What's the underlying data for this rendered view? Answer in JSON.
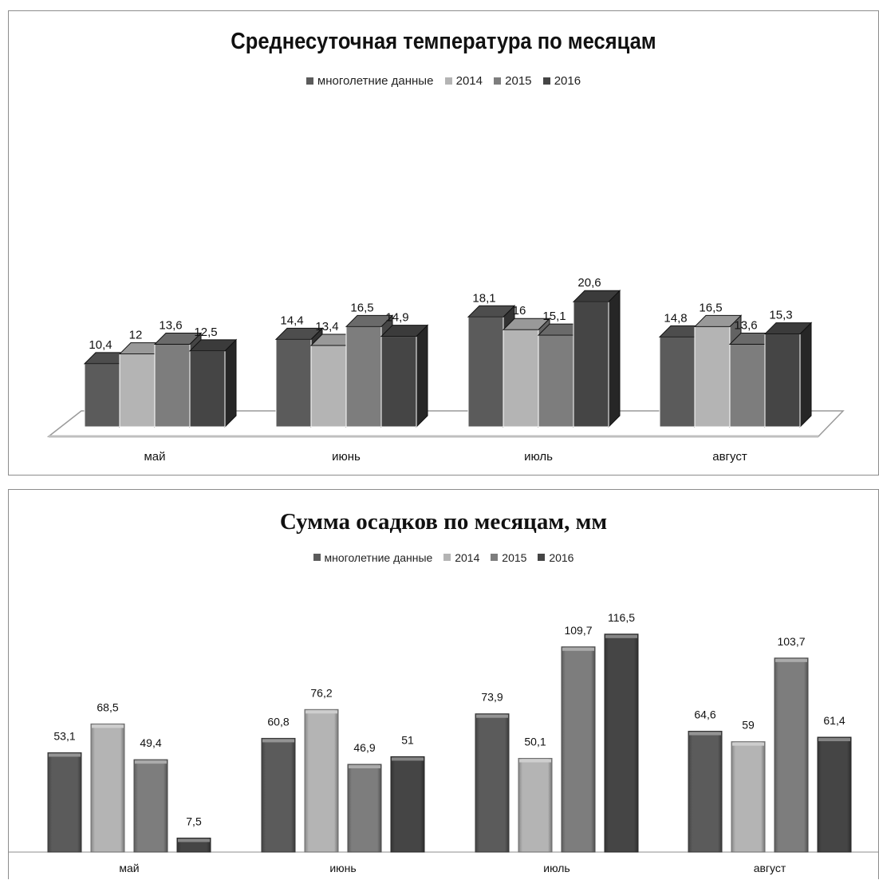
{
  "chart_data": [
    {
      "type": "bar",
      "title": "Среднесуточная температура по месяцам",
      "categories": [
        "май",
        "июнь",
        "июль",
        "август"
      ],
      "series": [
        {
          "name": "многолетние данные",
          "values": [
            10.4,
            14.4,
            18.1,
            14.8
          ],
          "labels": [
            "10,4",
            "14,4",
            "18,1",
            "14,8"
          ],
          "color": "#5b5b5b"
        },
        {
          "name": "2014",
          "values": [
            12,
            13.4,
            16,
            16.5
          ],
          "labels": [
            "12",
            "13,4",
            "16",
            "16,5"
          ],
          "color": "#b4b4b4"
        },
        {
          "name": "2015",
          "values": [
            13.6,
            16.5,
            15.1,
            13.6
          ],
          "labels": [
            "13,6",
            "16,5",
            "15,1",
            "13,6"
          ],
          "color": "#7d7d7d"
        },
        {
          "name": "2016",
          "values": [
            12.5,
            14.9,
            20.6,
            15.3
          ],
          "labels": [
            "12,5",
            "14,9",
            "20,6",
            "15,3"
          ],
          "color": "#454545"
        }
      ],
      "ylim": [
        0,
        22
      ],
      "legend": "top",
      "grid": false,
      "style": "3d-column"
    },
    {
      "type": "bar",
      "title": "Сумма осадков по месяцам, мм",
      "categories": [
        "май",
        "июнь",
        "июль",
        "август"
      ],
      "series": [
        {
          "name": "многолетние данные",
          "values": [
            53.1,
            60.8,
            73.9,
            64.6
          ],
          "labels": [
            "53,1",
            "60,8",
            "73,9",
            "64,6"
          ],
          "color": "#5b5b5b"
        },
        {
          "name": "2014",
          "values": [
            68.5,
            76.2,
            50.1,
            59
          ],
          "labels": [
            "68,5",
            "76,2",
            "50,1",
            "59"
          ],
          "color": "#b4b4b4"
        },
        {
          "name": "2015",
          "values": [
            49.4,
            46.9,
            109.7,
            103.7
          ],
          "labels": [
            "49,4",
            "46,9",
            "109,7",
            "103,7"
          ],
          "color": "#7d7d7d"
        },
        {
          "name": "2016",
          "values": [
            7.5,
            51,
            116.5,
            61.4
          ],
          "labels": [
            "7,5",
            "51",
            "116,5",
            "61,4"
          ],
          "color": "#454545"
        }
      ],
      "ylim": [
        0,
        125
      ],
      "legend": "top",
      "grid": false,
      "style": "bevel-column"
    }
  ]
}
